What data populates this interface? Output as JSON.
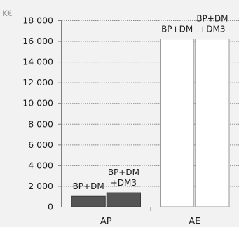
{
  "chart_data": {
    "type": "bar",
    "unit_label": "K€",
    "y_tick_labels": [
      "0",
      "2 000",
      "4 000",
      "6 000",
      "8 000",
      "10 000",
      "12 000",
      "14 000",
      "16 000",
      "18 000"
    ],
    "ylim": [
      0,
      18000
    ],
    "grid": true,
    "grid_style": "dotted",
    "categories": [
      "AP",
      "AE"
    ],
    "series": [
      {
        "name": "BP+DM",
        "values": [
          1000,
          16200
        ],
        "colors": [
          "#555555",
          "#ffffff"
        ],
        "label_lines": [
          "BP+DM"
        ]
      },
      {
        "name": "BP+DM +DM3",
        "values": [
          1350,
          16200
        ],
        "colors": [
          "#555555",
          "#ffffff"
        ],
        "label_lines": [
          "BP+DM",
          "+DM3"
        ]
      }
    ]
  }
}
